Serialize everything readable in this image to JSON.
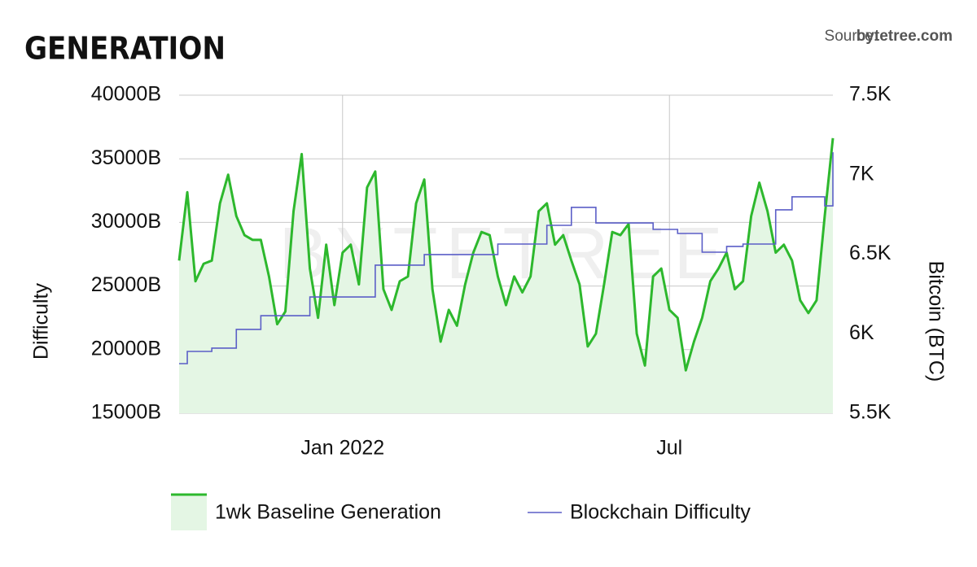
{
  "chart_data": {
    "type": "line",
    "title": "GENERATION",
    "source_label": "Source:",
    "source": "bytetree.com",
    "watermark": "BYTETREE",
    "y_label": "Difficulty",
    "y2_label": "Bitcoin (BTC)",
    "xlim": [
      "2021-10",
      "2022-10"
    ],
    "xticks": [
      {
        "value": "2022-01",
        "label": "Jan 2022"
      },
      {
        "value": "2022-07",
        "label": "Jul"
      }
    ],
    "ylim": [
      15000,
      40000
    ],
    "yticks": [
      {
        "value": 15000,
        "label": "15000B"
      },
      {
        "value": 20000,
        "label": "20000B"
      },
      {
        "value": 25000,
        "label": "25000B"
      },
      {
        "value": 30000,
        "label": "30000B"
      },
      {
        "value": 35000,
        "label": "35000B"
      },
      {
        "value": 40000,
        "label": "40000B"
      }
    ],
    "y2lim": [
      5500,
      7500
    ],
    "y2ticks": [
      {
        "value": 5500,
        "label": "5.5K"
      },
      {
        "value": 6000,
        "label": "6K"
      },
      {
        "value": 6500,
        "label": "6.5K"
      },
      {
        "value": 7000,
        "label": "7K"
      },
      {
        "value": 7500,
        "label": "7.5K"
      }
    ],
    "grid": true,
    "legend": "bottom",
    "series": [
      {
        "name": "1wk Baseline Generation",
        "color": "#2db82d",
        "fill": "#e4f6e4",
        "style": "area",
        "axis": "y2",
        "values": [
          6460,
          6890,
          6330,
          6440,
          6460,
          6820,
          7000,
          6740,
          6620,
          6590,
          6590,
          6360,
          6060,
          6140,
          6770,
          7130,
          6410,
          6100,
          6560,
          6180,
          6510,
          6560,
          6310,
          6920,
          7020,
          6280,
          6150,
          6330,
          6360,
          6820,
          6970,
          6280,
          5950,
          6150,
          6050,
          6310,
          6510,
          6640,
          6620,
          6360,
          6180,
          6360,
          6260,
          6360,
          6770,
          6820,
          6560,
          6620,
          6460,
          6310,
          5920,
          6000,
          6310,
          6640,
          6620,
          6690,
          6000,
          5800,
          6360,
          6410,
          6150,
          6100,
          5770,
          5950,
          6100,
          6330,
          6410,
          6510,
          6280,
          6330,
          6740,
          6950,
          6770,
          6510,
          6560,
          6460,
          6210,
          6130,
          6210,
          6740,
          7230
        ]
      },
      {
        "name": "Blockchain Difficulty",
        "color": "#5b5fc7",
        "style": "step",
        "axis": "y",
        "values": [
          18900,
          19860,
          19860,
          19860,
          20120,
          20120,
          20120,
          21590,
          21590,
          21590,
          22670,
          22670,
          22670,
          22670,
          22670,
          22670,
          24140,
          24140,
          24140,
          24140,
          24140,
          24140,
          24140,
          24140,
          26640,
          26640,
          26640,
          26640,
          26640,
          26640,
          27470,
          27470,
          27470,
          27470,
          27470,
          27470,
          27470,
          27470,
          27470,
          28300,
          28300,
          28300,
          28300,
          28300,
          28300,
          29770,
          29770,
          29770,
          31180,
          31180,
          31180,
          29960,
          29960,
          29960,
          29960,
          29960,
          29960,
          29960,
          29450,
          29450,
          29450,
          29130,
          29130,
          29130,
          27660,
          27660,
          27660,
          28110,
          28110,
          28300,
          28300,
          28300,
          28300,
          30990,
          30990,
          32010,
          32010,
          32010,
          32010,
          31300,
          35520
        ]
      }
    ]
  }
}
